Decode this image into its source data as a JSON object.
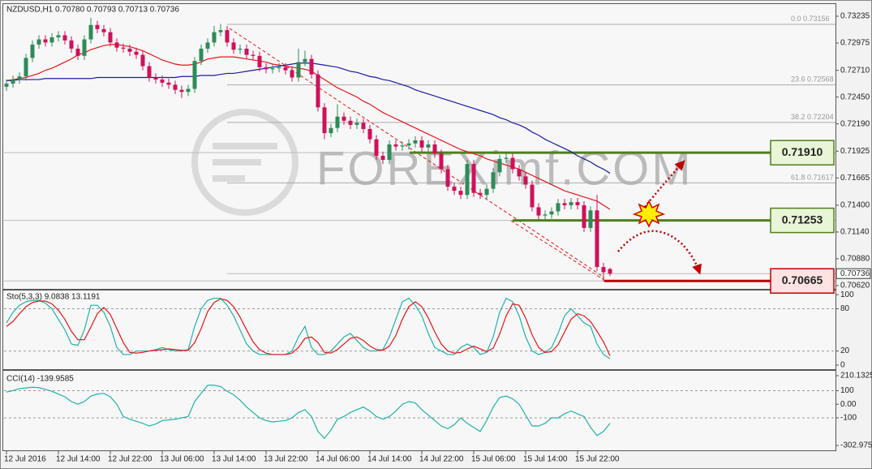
{
  "chart_data": [
    {
      "type": "candlestick",
      "title": "NZDUSD,H1 0.70780 0.70793 0.70713 0.70736",
      "categories": [
        "12 Jul 2016",
        null,
        null,
        null,
        null,
        null,
        null,
        null,
        "12 Jul 14:00",
        null,
        null,
        null,
        null,
        null,
        null,
        null,
        "12 Jul 22:00",
        null,
        null,
        null,
        null,
        null,
        null,
        null,
        "13 Jul 06:00",
        null,
        null,
        null,
        null,
        null,
        null,
        null,
        "13 Jul 14:00",
        null,
        null,
        null,
        null,
        null,
        null,
        null,
        "13 Jul 22:00",
        null,
        null,
        null,
        null,
        null,
        null,
        null,
        "14 Jul 06:00",
        null,
        null,
        null,
        null,
        null,
        null,
        null,
        "14 Jul 14:00",
        null,
        null,
        null,
        null,
        null,
        null,
        null,
        "14 Jul 22:00",
        null,
        null,
        null,
        null,
        null,
        null,
        null,
        "15 Jul 06:00",
        null,
        null,
        null,
        null,
        null,
        null,
        null,
        "15 Jul 14:00",
        null,
        null,
        null,
        null,
        null,
        null,
        null,
        "15 Jul 22:00",
        null,
        null,
        null,
        null,
        null
      ],
      "open": [
        0.7255,
        0.7258,
        0.7262,
        0.7265,
        0.7283,
        0.7296,
        0.7301,
        0.7298,
        0.7303,
        0.7305,
        0.73,
        0.7292,
        0.7285,
        0.7301,
        0.7315,
        0.7311,
        0.7308,
        0.7298,
        0.7293,
        0.7292,
        0.7289,
        0.7286,
        0.7275,
        0.7264,
        0.7262,
        0.7259,
        0.7257,
        0.7252,
        0.725,
        0.7253,
        0.728,
        0.7292,
        0.7298,
        0.7308,
        0.731,
        0.7298,
        0.7291,
        0.7292,
        0.7286,
        0.7285,
        0.7274,
        0.7272,
        0.7273,
        0.7274,
        0.7271,
        0.7264,
        0.7279,
        0.7282,
        0.7267,
        0.7235,
        0.721,
        0.7215,
        0.7226,
        0.7222,
        0.7218,
        0.722,
        0.7214,
        0.7204,
        0.7188,
        0.7184,
        0.7199,
        0.7197,
        0.7198,
        0.72,
        0.7203,
        0.7196,
        0.7199,
        0.719,
        0.7175,
        0.7158,
        0.7154,
        0.715,
        0.718,
        0.7152,
        0.715,
        0.7156,
        0.7172,
        0.7185,
        0.7186,
        0.7175,
        0.7168,
        0.716,
        0.7138,
        0.713,
        0.7131,
        0.7134,
        0.7142,
        0.714,
        0.7143,
        0.714,
        0.7118,
        0.7135,
        0.708,
        0.7078
      ],
      "high": [
        0.7262,
        0.7266,
        0.7269,
        0.7287,
        0.73,
        0.7305,
        0.7305,
        0.7307,
        0.7309,
        0.7309,
        0.7304,
        0.7296,
        0.7305,
        0.7322,
        0.7319,
        0.7315,
        0.7312,
        0.7302,
        0.7297,
        0.7296,
        0.7293,
        0.729,
        0.7279,
        0.7268,
        0.7266,
        0.7263,
        0.7261,
        0.7256,
        0.7257,
        0.7284,
        0.7296,
        0.7302,
        0.7314,
        0.7316,
        0.7314,
        0.7302,
        0.7296,
        0.7296,
        0.729,
        0.7289,
        0.7278,
        0.7277,
        0.7278,
        0.7278,
        0.7275,
        0.7292,
        0.729,
        0.7286,
        0.7271,
        0.7239,
        0.7219,
        0.7238,
        0.723,
        0.7226,
        0.7224,
        0.7224,
        0.7218,
        0.7208,
        0.7192,
        0.7203,
        0.7203,
        0.7202,
        0.7204,
        0.7207,
        0.7207,
        0.7203,
        0.7203,
        0.7194,
        0.7179,
        0.7162,
        0.7158,
        0.7184,
        0.7184,
        0.7156,
        0.716,
        0.7176,
        0.7189,
        0.719,
        0.719,
        0.7179,
        0.7172,
        0.7164,
        0.7142,
        0.7135,
        0.7138,
        0.7146,
        0.7146,
        0.7147,
        0.7147,
        0.7144,
        0.7139,
        0.715,
        0.7084,
        0.70793
      ],
      "low": [
        0.7251,
        0.7254,
        0.7258,
        0.7261,
        0.7279,
        0.7292,
        0.7294,
        0.7294,
        0.7299,
        0.7296,
        0.7288,
        0.7281,
        0.7281,
        0.7297,
        0.7307,
        0.7304,
        0.7294,
        0.7289,
        0.7288,
        0.7285,
        0.7282,
        0.7271,
        0.726,
        0.7258,
        0.7255,
        0.7253,
        0.7248,
        0.7244,
        0.7246,
        0.7249,
        0.7276,
        0.7288,
        0.7294,
        0.7304,
        0.7294,
        0.7287,
        0.7287,
        0.7282,
        0.7281,
        0.727,
        0.7268,
        0.7268,
        0.7269,
        0.7267,
        0.726,
        0.726,
        0.7275,
        0.7263,
        0.7231,
        0.7204,
        0.7206,
        0.7211,
        0.7218,
        0.7214,
        0.7214,
        0.721,
        0.72,
        0.7184,
        0.718,
        0.718,
        0.7193,
        0.7193,
        0.7194,
        0.7196,
        0.7192,
        0.7192,
        0.7186,
        0.7171,
        0.7154,
        0.715,
        0.7146,
        0.7146,
        0.7148,
        0.7146,
        0.7146,
        0.7152,
        0.7168,
        0.7181,
        0.7171,
        0.7164,
        0.7156,
        0.7134,
        0.7126,
        0.7126,
        0.7127,
        0.713,
        0.7136,
        0.7136,
        0.7136,
        0.7114,
        0.7114,
        0.7076,
        0.7066,
        0.70713
      ],
      "close": [
        0.7258,
        0.7262,
        0.7265,
        0.7283,
        0.7296,
        0.7301,
        0.7298,
        0.7303,
        0.7305,
        0.73,
        0.7292,
        0.7285,
        0.7301,
        0.7315,
        0.7311,
        0.7308,
        0.7298,
        0.7293,
        0.7292,
        0.7289,
        0.7286,
        0.7275,
        0.7264,
        0.7262,
        0.7259,
        0.7257,
        0.7252,
        0.725,
        0.7253,
        0.728,
        0.7292,
        0.7298,
        0.7308,
        0.731,
        0.7298,
        0.7291,
        0.7292,
        0.7286,
        0.7285,
        0.7274,
        0.7272,
        0.7273,
        0.7274,
        0.7271,
        0.7264,
        0.7279,
        0.7282,
        0.7267,
        0.7235,
        0.721,
        0.7215,
        0.7226,
        0.7222,
        0.7218,
        0.722,
        0.7214,
        0.7204,
        0.7188,
        0.7184,
        0.7199,
        0.7197,
        0.7198,
        0.72,
        0.7203,
        0.7196,
        0.7199,
        0.719,
        0.7175,
        0.7158,
        0.7154,
        0.715,
        0.718,
        0.7152,
        0.715,
        0.7156,
        0.7172,
        0.7185,
        0.7186,
        0.7175,
        0.7168,
        0.716,
        0.7138,
        0.713,
        0.7131,
        0.7134,
        0.7142,
        0.714,
        0.7143,
        0.714,
        0.7118,
        0.7135,
        0.708,
        0.7075,
        0.70736
      ],
      "up_color": "#2e8b57",
      "down_color": "#d0105a",
      "overlays": [
        {
          "color": "#e8141a",
          "values": [
            0.7261,
            0.7262,
            0.7263,
            0.7264,
            0.7266,
            0.7268,
            0.7271,
            0.7273,
            0.7276,
            0.7279,
            0.7282,
            0.7286,
            0.7288,
            0.7291,
            0.7293,
            0.7295,
            0.7296,
            0.7296,
            0.7295,
            0.7294,
            0.7292,
            0.729,
            0.7287,
            0.7284,
            0.7281,
            0.7279,
            0.7277,
            0.7276,
            0.7276,
            0.7277,
            0.7279,
            0.7282,
            0.7283,
            0.7284,
            0.7284,
            0.7284,
            0.7283,
            0.7282,
            0.7281,
            0.728,
            0.7279,
            0.7277,
            0.7276,
            0.7275,
            0.7274,
            0.7273,
            0.7272,
            0.727,
            0.7266,
            0.7262,
            0.7258,
            0.7254,
            0.7251,
            0.7248,
            0.7245,
            0.7241,
            0.7238,
            0.7234,
            0.723,
            0.7227,
            0.7224,
            0.7221,
            0.7218,
            0.7215,
            0.7212,
            0.7209,
            0.7206,
            0.7203,
            0.72,
            0.7197,
            0.7194,
            0.7192,
            0.719,
            0.7188,
            0.7185,
            0.7183,
            0.7181,
            0.7179,
            0.7177,
            0.7175,
            0.7172,
            0.7169,
            0.7166,
            0.7163,
            0.716,
            0.7157,
            0.7154,
            0.7152,
            0.715,
            0.7148,
            0.7146,
            0.7144,
            0.714,
            0.7136
          ]
        },
        {
          "color": "#1a1aa8",
          "values": [
            0.7261,
            0.7261,
            0.7262,
            0.7262,
            0.7262,
            0.7262,
            0.7263,
            0.7263,
            0.7263,
            0.7263,
            0.7263,
            0.7263,
            0.7263,
            0.7263,
            0.7264,
            0.7264,
            0.7264,
            0.7264,
            0.7264,
            0.7264,
            0.7264,
            0.7264,
            0.7264,
            0.7264,
            0.7264,
            0.7264,
            0.7264,
            0.7265,
            0.7265,
            0.7265,
            0.7266,
            0.7266,
            0.7266,
            0.7267,
            0.7268,
            0.7268,
            0.7269,
            0.727,
            0.7271,
            0.7272,
            0.7273,
            0.7274,
            0.7275,
            0.7276,
            0.7277,
            0.7278,
            0.7278,
            0.7278,
            0.7277,
            0.7276,
            0.7275,
            0.7274,
            0.7272,
            0.727,
            0.7269,
            0.7267,
            0.7265,
            0.7264,
            0.7262,
            0.7261,
            0.7259,
            0.7257,
            0.7255,
            0.7252,
            0.725,
            0.7248,
            0.7246,
            0.7244,
            0.7242,
            0.724,
            0.7238,
            0.7236,
            0.7234,
            0.7232,
            0.723,
            0.7228,
            0.7225,
            0.7223,
            0.722,
            0.7218,
            0.7215,
            0.7211,
            0.7208,
            0.7204,
            0.7201,
            0.7198,
            0.7195,
            0.7192,
            0.7188,
            0.7185,
            0.7182,
            0.7178,
            0.7175,
            0.7171
          ]
        }
      ],
      "ylim": [
        0.70588,
        0.73353
      ],
      "yticks": [
        0.73235,
        0.72975,
        {
          "value": 0.7271,
          "label": "0.72710"
        },
        {
          "value": 0.7245,
          "label": "0.72450"
        },
        {
          "value": 0.7219,
          "label": "0.72190"
        },
        0.71925,
        0.71665,
        {
          "value": 0.714,
          "label": "0.71400"
        },
        {
          "value": 0.7114,
          "label": "0.71140"
        },
        {
          "value": 0.7088,
          "label": "0.70880"
        },
        {
          "value": 0.7062,
          "label": "0.70620"
        }
      ],
      "last": 0.70736,
      "fib_levels": [
        {
          "label": "0.0",
          "value": 0.73156
        },
        {
          "label": "23.6",
          "value": 0.72568
        },
        {
          "label": "38.2",
          "value": 0.72204
        },
        {
          "label": "61.8",
          "value": 0.71617
        }
      ],
      "levels": [
        {
          "value": 0.7191,
          "label": "0.71910",
          "color": "#4f7f1f"
        },
        {
          "value": 0.71253,
          "color": "#4f7f1f"
        },
        {
          "value": 0.70665,
          "color": "#c00000"
        }
      ],
      "watermark": "FOREXimf.COM"
    },
    {
      "type": "line",
      "title": "Sto(5,3,3) 9.0838 13.1191",
      "series": [
        {
          "color": "#20b2aa",
          "values": [
            60,
            75,
            85,
            90,
            92,
            92,
            88,
            80,
            65,
            50,
            30,
            28,
            50,
            85,
            85,
            75,
            55,
            25,
            15,
            15,
            20,
            20,
            20,
            22,
            25,
            22,
            20,
            20,
            22,
            55,
            80,
            92,
            95,
            95,
            85,
            70,
            50,
            30,
            20,
            15,
            15,
            15,
            15,
            15,
            20,
            40,
            55,
            25,
            15,
            15,
            20,
            30,
            40,
            45,
            35,
            25,
            20,
            20,
            22,
            40,
            65,
            90,
            95,
            85,
            70,
            45,
            25,
            20,
            15,
            15,
            25,
            30,
            25,
            15,
            18,
            40,
            75,
            95,
            90,
            70,
            40,
            20,
            15,
            18,
            25,
            45,
            70,
            80,
            70,
            60,
            55,
            30,
            15,
            9.0838
          ]
        },
        {
          "color": "#e8141a",
          "values": [
            55,
            62,
            73,
            83,
            89,
            91,
            91,
            87,
            78,
            65,
            48,
            36,
            36,
            54,
            73,
            82,
            72,
            52,
            32,
            18,
            17,
            18,
            20,
            21,
            22,
            23,
            22,
            21,
            21,
            32,
            52,
            76,
            89,
            94,
            92,
            83,
            68,
            50,
            33,
            22,
            17,
            15,
            15,
            15,
            17,
            25,
            38,
            40,
            32,
            18,
            17,
            22,
            30,
            38,
            40,
            35,
            27,
            22,
            21,
            27,
            42,
            65,
            83,
            90,
            83,
            67,
            47,
            30,
            20,
            17,
            18,
            23,
            27,
            23,
            19,
            24,
            44,
            70,
            87,
            85,
            67,
            43,
            25,
            18,
            19,
            29,
            47,
            65,
            73,
            70,
            62,
            48,
            33,
            13.1191
          ]
        }
      ],
      "ylim": [
        -7,
        106
      ],
      "yticks": [
        100,
        80,
        20,
        0
      ],
      "levels": [
        80,
        20
      ]
    },
    {
      "type": "line",
      "title": "CCI(14) -139.9585",
      "series": [
        {
          "color": "#20b2aa",
          "values": [
            90,
            100,
            115,
            120,
            125,
            122,
            110,
            95,
            75,
            55,
            20,
            0,
            20,
            60,
            75,
            80,
            55,
            0,
            -90,
            -110,
            -125,
            -140,
            -160,
            -145,
            -120,
            -115,
            -110,
            -100,
            -90,
            20,
            80,
            140,
            140,
            130,
            95,
            70,
            30,
            -20,
            -60,
            -100,
            -120,
            -130,
            -125,
            -120,
            -100,
            -60,
            -40,
            -90,
            -200,
            -250,
            -190,
            -110,
            -90,
            -60,
            -40,
            -20,
            -50,
            -90,
            -110,
            -90,
            -50,
            0,
            20,
            10,
            -40,
            -80,
            -120,
            -160,
            -180,
            -150,
            -100,
            -140,
            -170,
            -200,
            -120,
            -20,
            50,
            60,
            40,
            0,
            -80,
            -160,
            -160,
            -140,
            -100,
            -100,
            -70,
            -50,
            -70,
            -90,
            -170,
            -230,
            -200,
            -139.9585
          ]
        }
      ],
      "ylim": [
        -302.9753,
        210.1325
      ],
      "yticks": [
        210.1325,
        100,
        {
          "value": 0,
          "label": "0.00"
        },
        -100,
        -302.9753
      ],
      "levels": [
        100,
        -100
      ]
    }
  ]
}
